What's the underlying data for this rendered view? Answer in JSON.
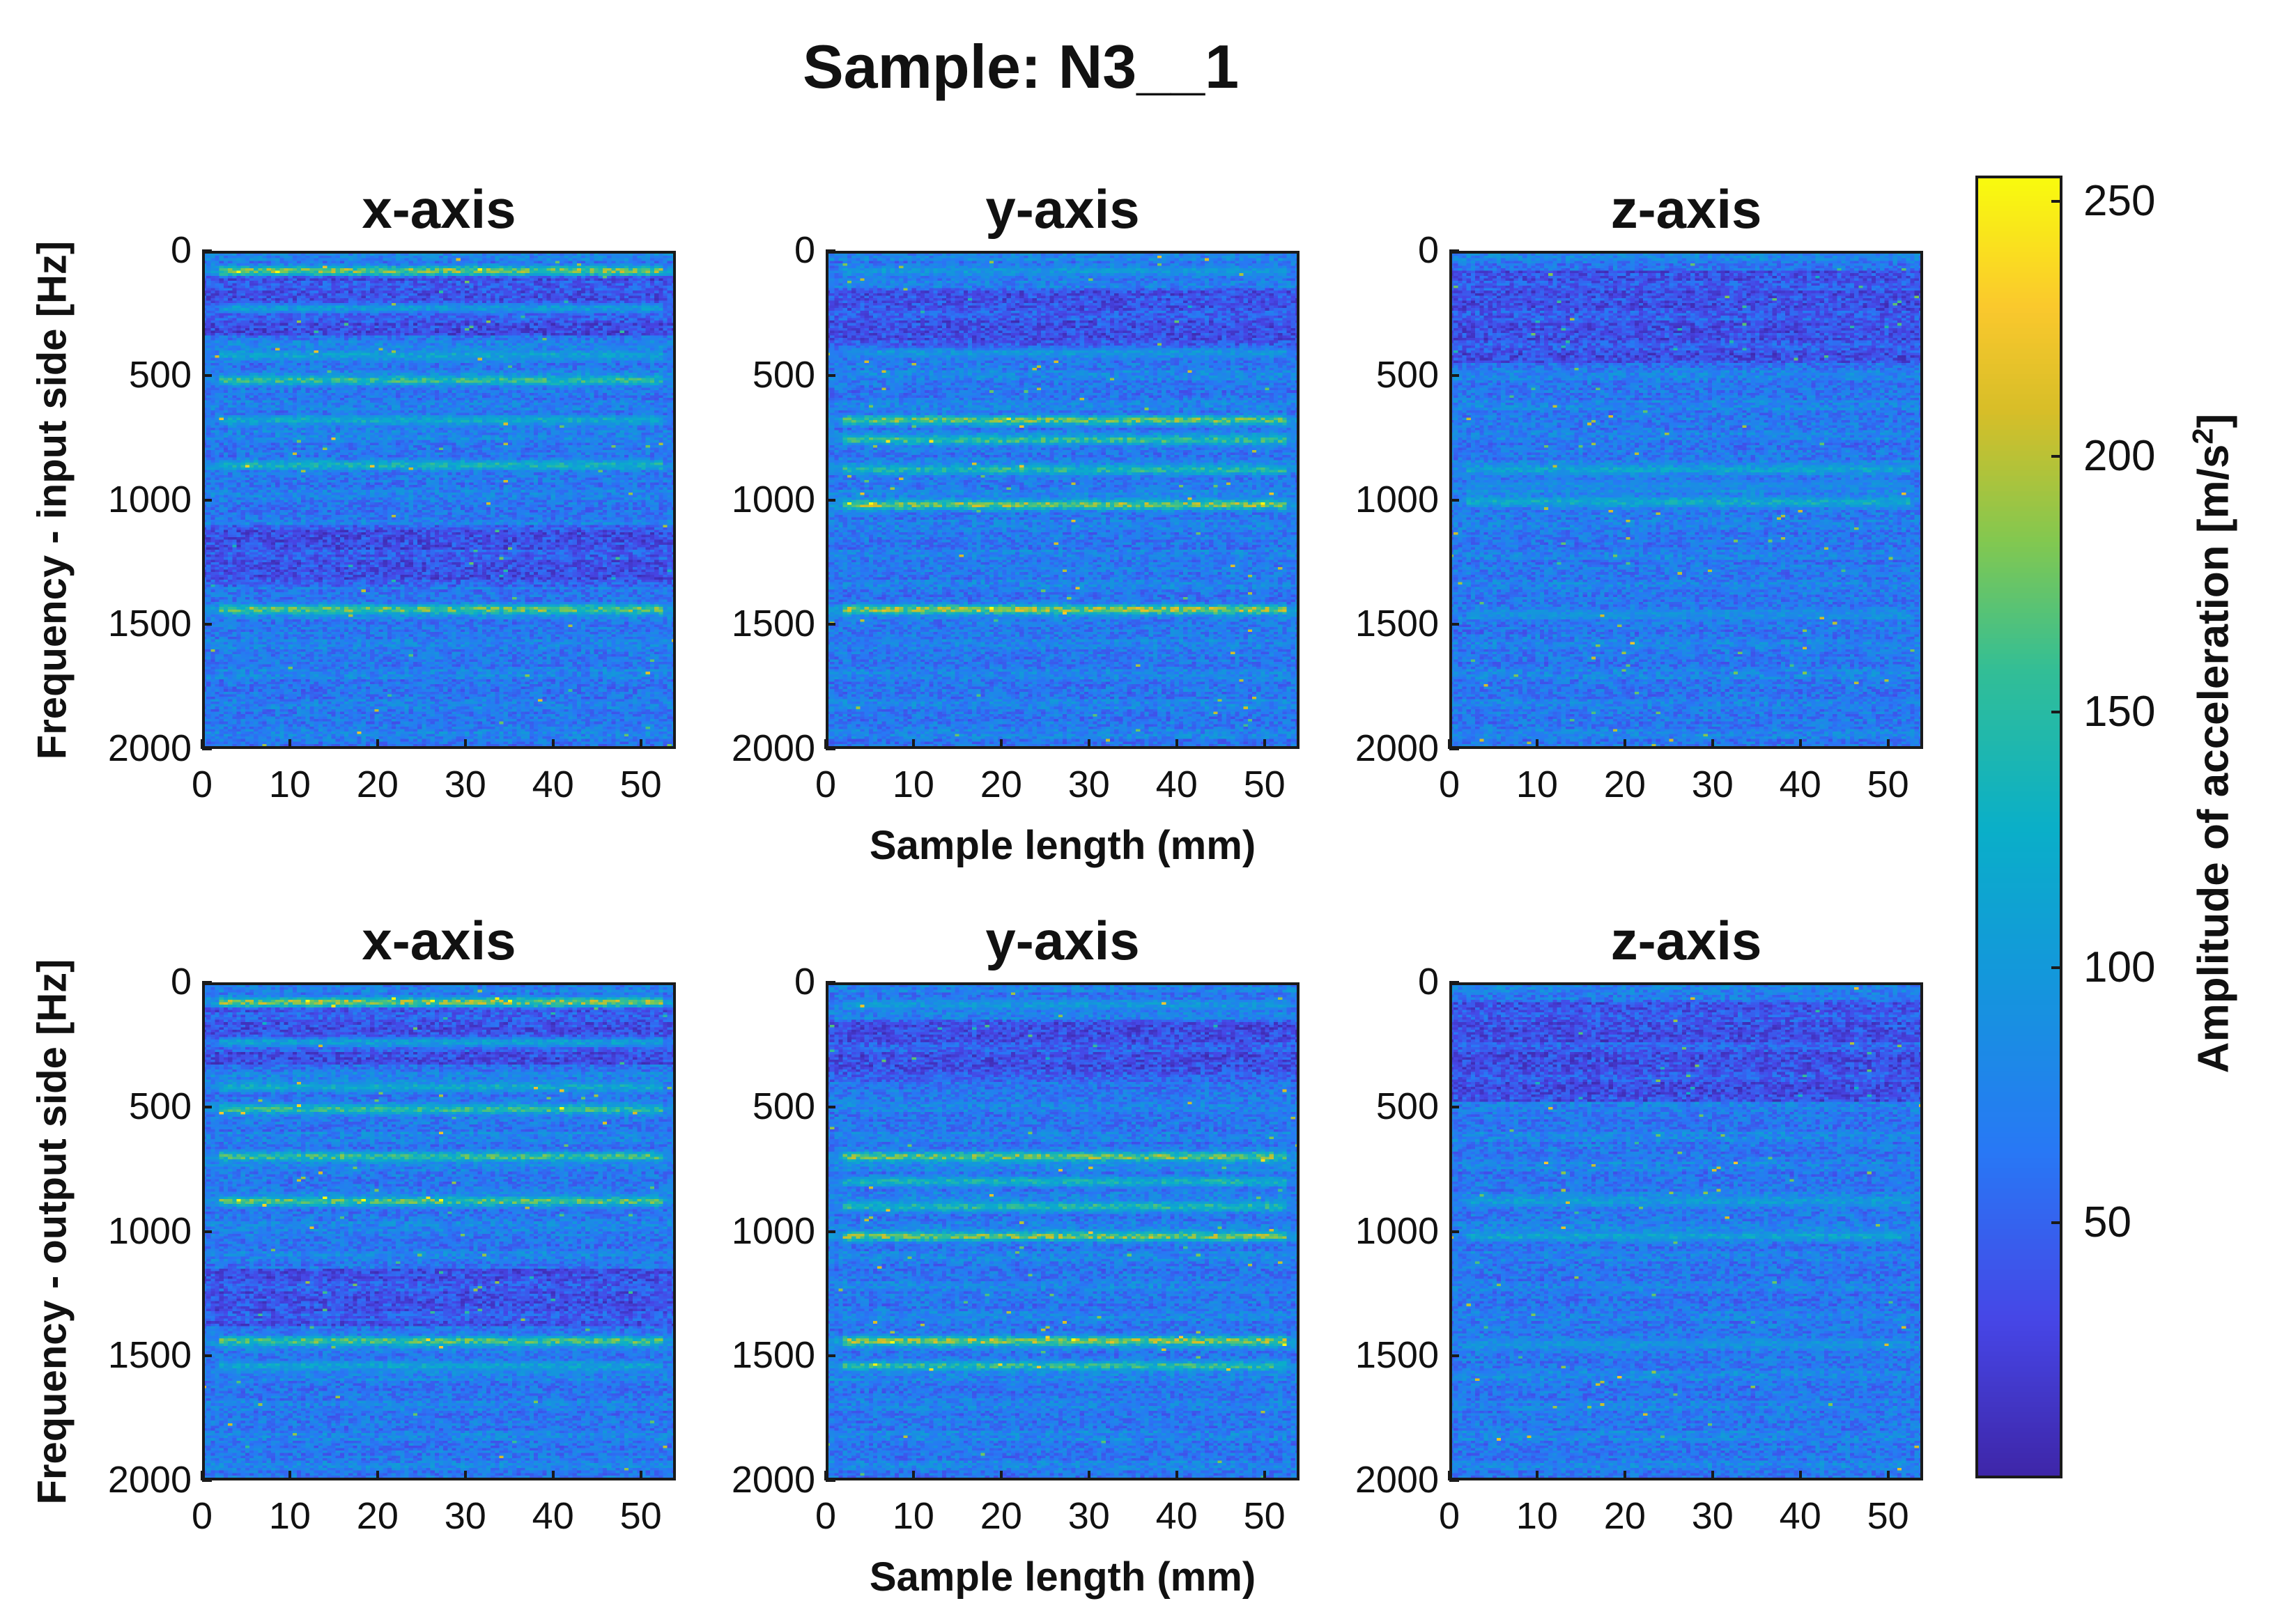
{
  "chart_data": {
    "type": "heatmap",
    "title": "Sample: N3__1",
    "subplot_titles": [
      "x-axis",
      "y-axis",
      "z-axis"
    ],
    "rows": [
      {
        "ylabel": "Frequency - input side [Hz]",
        "panels": [
          {
            "title": "x-axis",
            "bands": [
              [
                80,
                240
              ],
              [
                230,
                140
              ],
              [
                420,
                150
              ],
              [
                520,
                200
              ],
              [
                680,
                160
              ],
              [
                860,
                175
              ],
              [
                1440,
                225
              ]
            ],
            "dark": [
              [
                100,
                340
              ],
              [
                1100,
                1350
              ]
            ]
          },
          {
            "title": "y-axis",
            "bands": [
              [
                80,
                130
              ],
              [
                410,
                130
              ],
              [
                680,
                230
              ],
              [
                760,
                200
              ],
              [
                880,
                190
              ],
              [
                1020,
                245
              ],
              [
                1440,
                250
              ]
            ],
            "dark": [
              [
                150,
                400
              ]
            ]
          },
          {
            "title": "z-axis",
            "bands": [
              [
                880,
                150
              ],
              [
                1010,
                165
              ],
              [
                1460,
                115
              ],
              [
                940,
                110
              ]
            ],
            "dark": [
              [
                80,
                450
              ]
            ]
          }
        ]
      },
      {
        "ylabel": "Frequency - output side [Hz]",
        "panels": [
          {
            "title": "x-axis",
            "bands": [
              [
                80,
                245
              ],
              [
                240,
                150
              ],
              [
                420,
                160
              ],
              [
                510,
                200
              ],
              [
                700,
                210
              ],
              [
                880,
                220
              ],
              [
                1440,
                215
              ],
              [
                1540,
                150
              ]
            ],
            "dark": [
              [
                100,
                330
              ],
              [
                1150,
                1380
              ]
            ]
          },
          {
            "title": "y-axis",
            "bands": [
              [
                90,
                130
              ],
              [
                700,
                235
              ],
              [
                800,
                180
              ],
              [
                900,
                190
              ],
              [
                1020,
                240
              ],
              [
                1440,
                250
              ],
              [
                1540,
                200
              ]
            ],
            "dark": [
              [
                150,
                400
              ]
            ]
          },
          {
            "title": "z-axis",
            "bands": [
              [
                880,
                140
              ],
              [
                1020,
                150
              ],
              [
                1450,
                120
              ]
            ],
            "dark": [
              [
                80,
                480
              ]
            ]
          }
        ]
      }
    ],
    "x": {
      "label": "Sample length (mm)",
      "range": [
        0,
        54
      ],
      "ticks": [
        0,
        10,
        20,
        30,
        40,
        50
      ]
    },
    "y": {
      "range": [
        0,
        2000
      ],
      "ticks": [
        0,
        500,
        1000,
        1500,
        2000
      ],
      "reversed": true
    },
    "colorbar": {
      "label": "Amplitude of acceleration [m/s",
      "label_sup": "2",
      "label_end": "]",
      "range": [
        0,
        255
      ],
      "ticks": [
        250,
        200,
        150,
        100,
        50
      ],
      "colormap": "parula"
    }
  }
}
